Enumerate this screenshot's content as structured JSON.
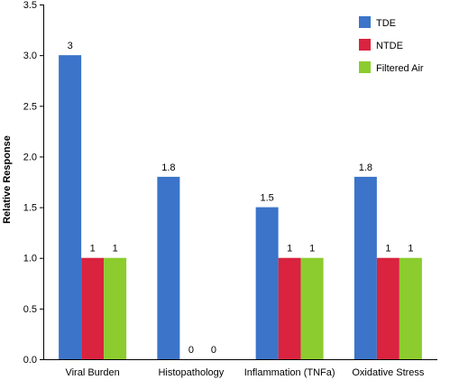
{
  "chart_data": {
    "type": "bar",
    "title": "",
    "xlabel": "",
    "ylabel": "Relative Response",
    "ylim": [
      0,
      3.5
    ],
    "yticks": [
      "0.0",
      "0.5",
      "1.0",
      "1.5",
      "2.0",
      "2.5",
      "3.0",
      "3.5"
    ],
    "grid": false,
    "legend_position": "top-right",
    "categories": [
      "Viral Burden",
      "Histopathology",
      "Inflammation  (TNFa)",
      "Oxidative Stress"
    ],
    "series": [
      {
        "name": "TDE",
        "color": "#3b74c9",
        "values": [
          3,
          1.8,
          1.5,
          1.8
        ],
        "labels": [
          "3",
          "1.8",
          "1.5",
          "1.8"
        ]
      },
      {
        "name": "NTDE",
        "color": "#d9233f",
        "values": [
          1,
          0,
          1,
          1
        ],
        "labels": [
          "1",
          "0",
          "1",
          "1"
        ]
      },
      {
        "name": "Filtered Air",
        "color": "#8ccc2e",
        "values": [
          1,
          0,
          1,
          1
        ],
        "labels": [
          "1",
          "0",
          "1",
          "1"
        ]
      }
    ]
  }
}
